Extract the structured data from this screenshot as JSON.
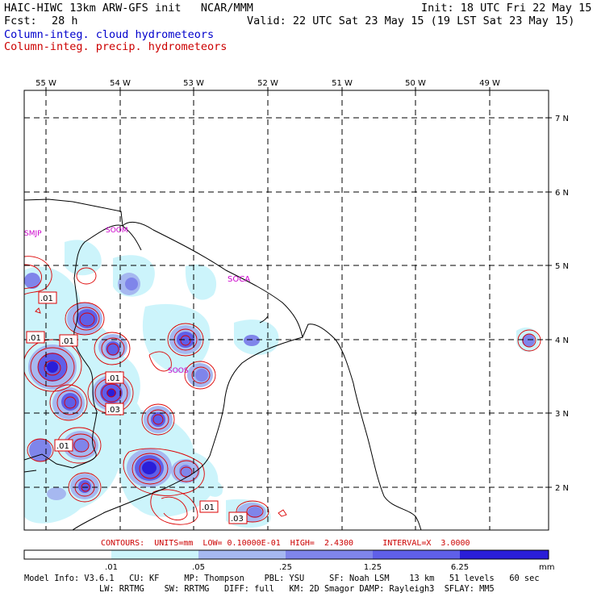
{
  "header": {
    "model": "HAIC-HIWC 13km ARW-GFS init   NCAR/MMM",
    "init": "Init: 18 UTC Fri 22 May 15",
    "fcst_label": "Fcst:",
    "fcst_value": "28 h",
    "valid": "Valid: 22 UTC Sat 23 May 15 (19 LST Sat 23 May 15)",
    "line_blue": "Column-integ. cloud hydrometeors",
    "line_red": "Column-integ. precip. hydrometeors"
  },
  "map": {
    "lon_labels": [
      "55 W",
      "54 W",
      "53 W",
      "52 W",
      "51 W",
      "50 W",
      "49 W"
    ],
    "lat_labels": [
      "7 N",
      "6 N",
      "5 N",
      "4 N",
      "3 N",
      "2 N"
    ],
    "station_labels": [
      "SMJP",
      "SOOM",
      "SOCA",
      "SOOS"
    ],
    "contour_labels": [
      ".01",
      ".01",
      ".01",
      ".01",
      ".03",
      ".01",
      ".01",
      ".03"
    ],
    "colors": {
      "light": "#ccf4fb",
      "mid1": "#a6b8f0",
      "mid2": "#7f85ea",
      "mid3": "#5f5fe8",
      "dark": "#2a1ed8",
      "contour": "#dd0000",
      "station": "#cc00cc"
    }
  },
  "contour_info": "CONTOURS:  UNITS=mm  LOW= 0.10000E-01  HIGH=  2.4300      INTERVAL=X  3.0000",
  "colorbar": {
    "ticks": [
      ".01",
      ".05",
      ".25",
      "1.25",
      "6.25"
    ],
    "unit": "mm",
    "fills": [
      "#ffffff",
      "#ccf4fb",
      "#a6b8f0",
      "#7f85ea",
      "#5f5fe8",
      "#2a1ed8"
    ]
  },
  "footer": {
    "line1": "Model Info: V3.6.1   CU: KF     MP: Thompson    PBL: YSU     SF: Noah LSM    13 km   51 levels   60 sec",
    "line2": "               LW: RRTMG    SW: RRTMG   DIFF: full   KM: 2D Smagor DAMP: Rayleigh3  SFLAY: MM5"
  }
}
